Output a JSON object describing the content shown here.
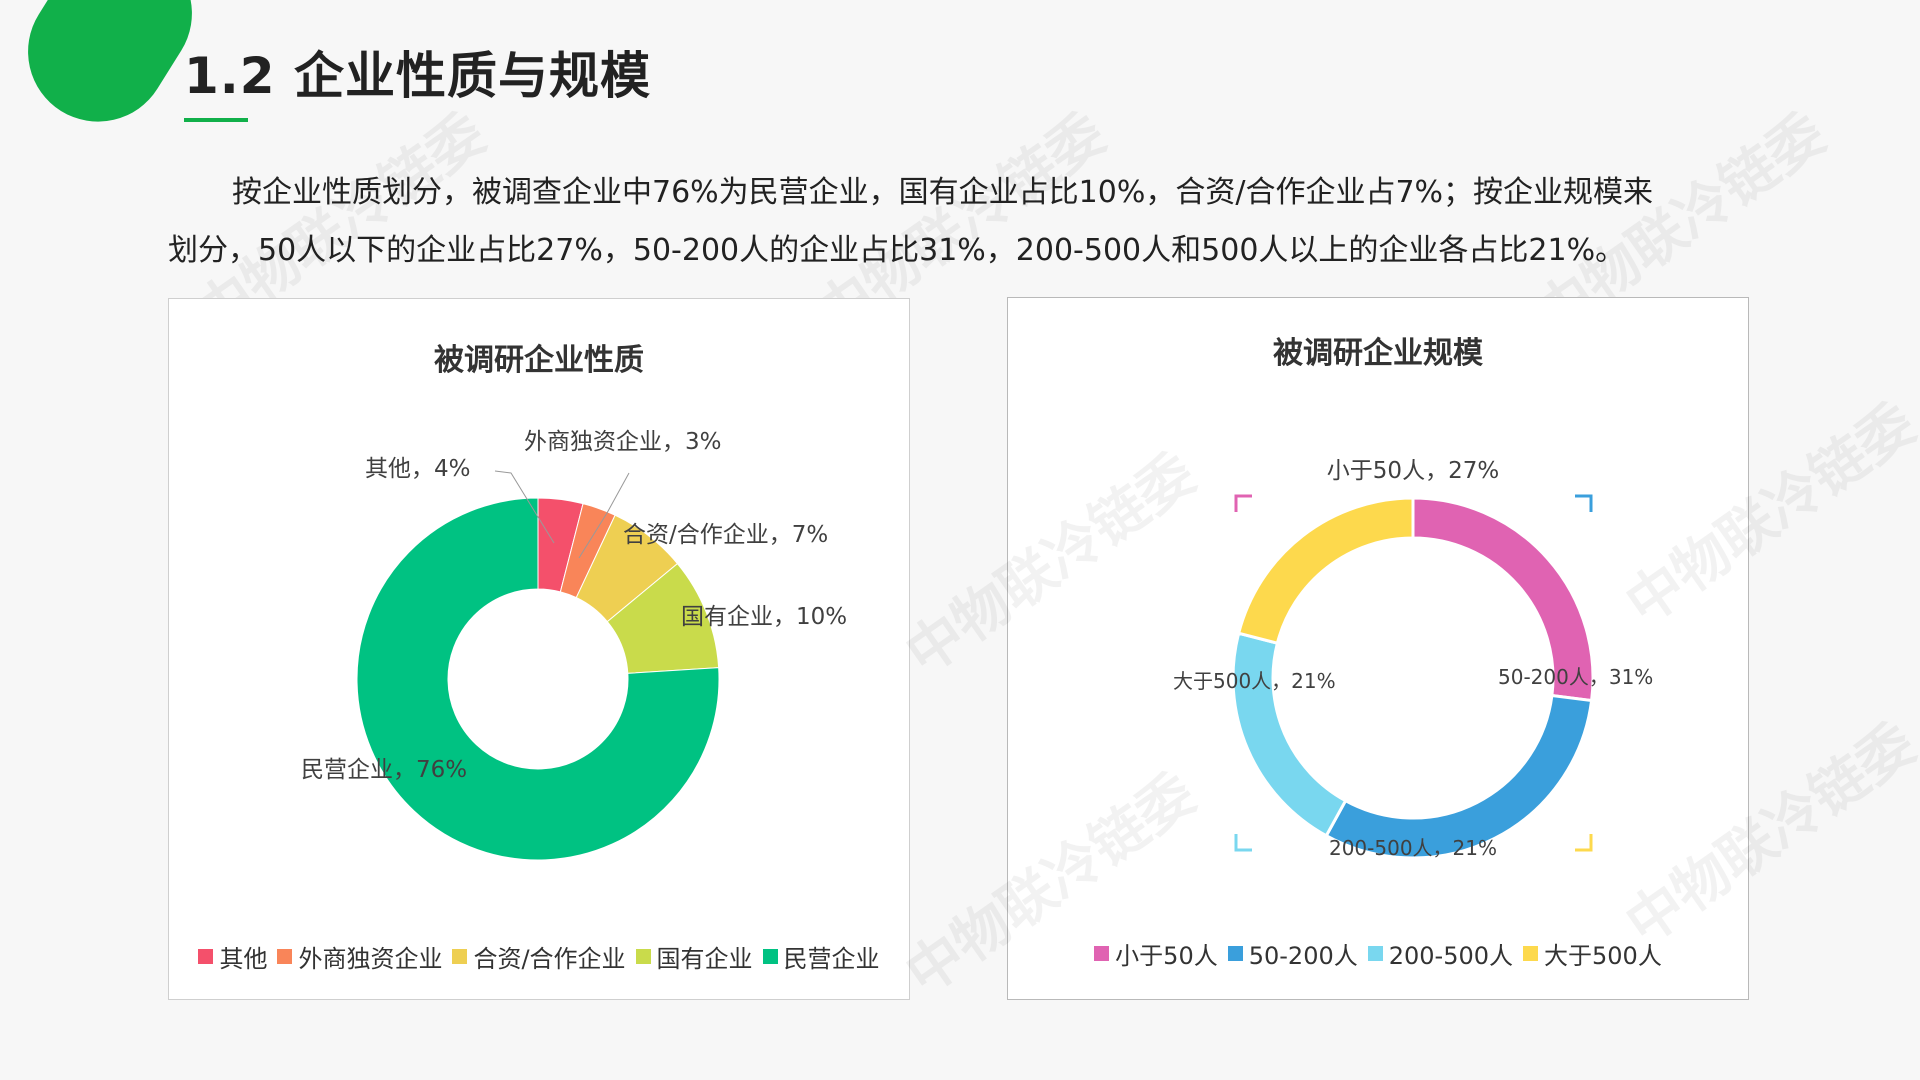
{
  "header": {
    "title": "1.2 企业性质与规模",
    "accent_color": "#11b04a"
  },
  "intro": {
    "line1": "按企业性质划分，被调查企业中76%为民营企业，国有企业占比10%，合资/合作企业占7%；按企业规模来",
    "line2": "划分，50人以下的企业占比27%，50-200人的企业占比31%，200-500人和500人以上的企业各占比21%。"
  },
  "watermark": "中物联冷链委",
  "chart_data": [
    {
      "type": "pie",
      "donut": true,
      "title": "被调研企业性质",
      "categories": [
        "其他",
        "外商独资企业",
        "合资/合作企业",
        "国有企业",
        "民营企业"
      ],
      "values": [
        4,
        3,
        7,
        10,
        76
      ],
      "unit": "%",
      "colors": [
        "#f4506b",
        "#f98559",
        "#eecf52",
        "#c9db4b",
        "#00c282"
      ],
      "data_labels": [
        "其他，4%",
        "外商独资企业，3%",
        "合资/合作企业，7%",
        "国有企业，10%",
        "民营企业，76%"
      ],
      "legend_position": "bottom"
    },
    {
      "type": "pie",
      "donut": true,
      "title": "被调研企业规模",
      "categories": [
        "小于50人",
        "50-200人",
        "200-500人",
        "大于500人"
      ],
      "values": [
        27,
        31,
        21,
        21
      ],
      "unit": "%",
      "colors": [
        "#e063b2",
        "#3a9fdc",
        "#79d7ef",
        "#fdd94d"
      ],
      "data_labels": [
        "小于50人，27%",
        "50-200人，31%",
        "200-500人，21%",
        "大于500人，21%"
      ],
      "legend_position": "bottom"
    }
  ]
}
